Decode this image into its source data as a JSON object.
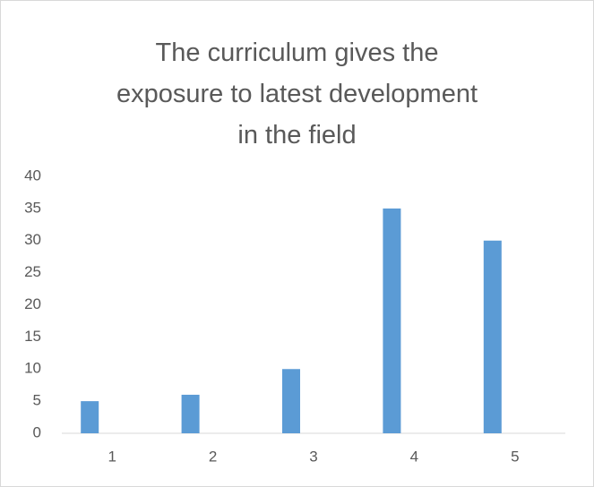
{
  "chart_data": {
    "type": "bar",
    "title": "The curriculum gives the exposure to latest development in the field",
    "categories": [
      "1",
      "2",
      "3",
      "4",
      "5"
    ],
    "values": [
      5,
      6,
      10,
      35,
      30
    ],
    "color": "#5b9bd5",
    "ylim": [
      0,
      40
    ],
    "yticks": [
      0,
      5,
      10,
      15,
      20,
      25,
      30,
      35,
      40
    ],
    "grid": false
  }
}
